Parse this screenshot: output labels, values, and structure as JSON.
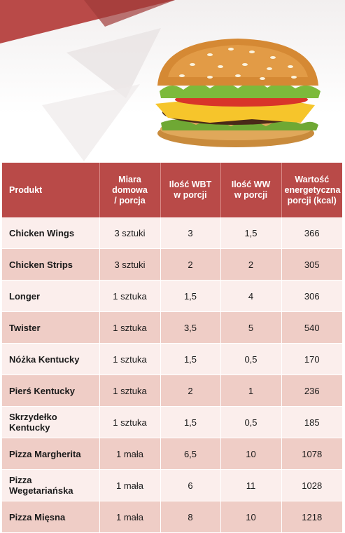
{
  "table": {
    "headers": [
      "Produkt",
      "Miara domowa / porcja",
      "Ilość WBT w porcji",
      "Ilość WW w porcji",
      "Wartość energetyczna porcji (kcal)"
    ],
    "header_lines": [
      [
        "Produkt"
      ],
      [
        "Miara",
        "domowa",
        "/ porcja"
      ],
      [
        "Ilość WBT",
        "w porcji"
      ],
      [
        "Ilość WW",
        "w porcji"
      ],
      [
        "Wartość",
        "energetyczna",
        "porcji (kcal)"
      ]
    ],
    "rows": [
      [
        "Chicken Wings",
        "3 sztuki",
        "3",
        "1,5",
        "366"
      ],
      [
        "Chicken Strips",
        "3 sztuki",
        "2",
        "2",
        "305"
      ],
      [
        "Longer",
        "1 sztuka",
        "1,5",
        "4",
        "306"
      ],
      [
        "Twister",
        "1 sztuka",
        "3,5",
        "5",
        "540"
      ],
      [
        "Nóżka Kentucky",
        "1 sztuka",
        "1,5",
        "0,5",
        "170"
      ],
      [
        "Pierś Kentucky",
        "1 sztuka",
        "2",
        "1",
        "236"
      ],
      [
        "Skrzydełko Kentucky",
        "1 sztuka",
        "1,5",
        "0,5",
        "185"
      ],
      [
        "Pizza Margherita",
        "1 mała",
        "6,5",
        "10",
        "1078"
      ],
      [
        "Pizza Wegetariańska",
        "1 mała",
        "6",
        "11",
        "1028"
      ],
      [
        "Pizza Mięsna",
        "1 mała",
        "8",
        "10",
        "1218"
      ]
    ]
  },
  "colors": {
    "header_bg": "#b94a48",
    "row_light": "#fbeeec",
    "row_dark": "#efcdc6",
    "accent": "#a8403e"
  },
  "hero": {
    "illustration": "burger-icon"
  }
}
